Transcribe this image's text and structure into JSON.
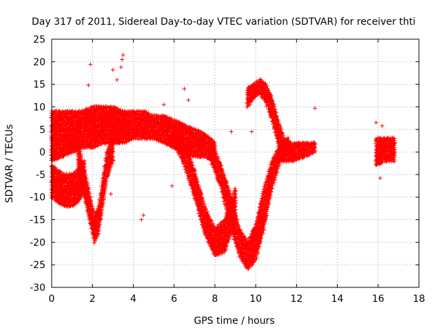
{
  "chart_data": {
    "type": "scatter",
    "title": "Day 317 of 2011, Sidereal Day-to-day VTEC variation (SDTVAR) for receiver thti",
    "xlabel": "GPS time / hours",
    "ylabel": "SDTVAR / TECUs",
    "xlim": [
      0,
      18
    ],
    "ylim": [
      -30,
      25
    ],
    "x_ticks": [
      0,
      2,
      4,
      6,
      8,
      10,
      12,
      14,
      16,
      18
    ],
    "y_ticks": [
      -30,
      -25,
      -20,
      -15,
      -10,
      -5,
      0,
      5,
      10,
      15,
      20,
      25
    ],
    "grid": true,
    "marker": "+",
    "color": "#ff0000",
    "bands": [
      {
        "name": "central-band",
        "x": [
          0.0,
          0.5,
          1.0,
          1.5,
          2.0,
          2.5,
          3.0,
          3.5,
          4.0,
          4.5,
          5.0,
          5.5,
          6.0,
          6.5,
          7.0,
          7.5,
          8.0
        ],
        "lo": [
          -2,
          -1,
          0,
          1,
          1,
          2,
          2,
          2,
          3,
          3,
          3,
          2,
          1,
          0,
          -1,
          -1,
          -2
        ],
        "hi": [
          9,
          9,
          9,
          9,
          10,
          10,
          10,
          9,
          9,
          9,
          8,
          8,
          7,
          6,
          5,
          4,
          2
        ]
      },
      {
        "name": "early-lower-band",
        "x": [
          0.0,
          0.3,
          0.6,
          1.0,
          1.3,
          1.6
        ],
        "lo": [
          -10,
          -11,
          -12,
          -12,
          -11,
          -9
        ],
        "hi": [
          -3,
          -4,
          -5,
          -5,
          -4,
          -2
        ]
      },
      {
        "name": "dip-near-2h",
        "x": [
          1.3,
          1.6,
          1.9,
          2.1,
          2.3,
          2.5,
          2.7,
          3.0
        ],
        "lo": [
          -4,
          -10,
          -16,
          -20,
          -18,
          -12,
          -6,
          -2
        ],
        "hi": [
          2,
          -4,
          -10,
          -14,
          -12,
          -6,
          0,
          3
        ]
      },
      {
        "name": "trough-8h",
        "x": [
          6.0,
          6.5,
          7.0,
          7.5,
          8.0,
          8.5,
          9.0
        ],
        "lo": [
          2,
          -3,
          -10,
          -18,
          -23,
          -22,
          -15
        ],
        "hi": [
          5,
          2,
          -4,
          -12,
          -17,
          -15,
          -8
        ]
      },
      {
        "name": "trough-9-5h",
        "x": [
          7.8,
          8.3,
          8.8,
          9.2,
          9.6,
          10.0,
          10.4,
          10.8,
          11.2,
          11.6
        ],
        "lo": [
          -2,
          -8,
          -17,
          -23,
          -26,
          -24,
          -17,
          -8,
          -2,
          0
        ],
        "hi": [
          2,
          -3,
          -10,
          -17,
          -20,
          -16,
          -8,
          -2,
          2,
          3
        ]
      },
      {
        "name": "rise-after-10h",
        "x": [
          9.6,
          9.9,
          10.2,
          10.5,
          10.8,
          11.1,
          11.4
        ],
        "lo": [
          10,
          12,
          13,
          11,
          7,
          2,
          -1
        ],
        "hi": [
          14,
          15,
          16,
          15,
          12,
          7,
          3
        ]
      },
      {
        "name": "tail-11-13h",
        "x": [
          11.2,
          11.8,
          12.4,
          12.9
        ],
        "lo": [
          -2,
          -2,
          -1,
          0
        ],
        "hi": [
          2,
          2,
          2,
          2
        ]
      },
      {
        "name": "cluster-16h",
        "x": [
          15.9,
          16.3,
          16.8
        ],
        "lo": [
          -3,
          -2,
          -2
        ],
        "hi": [
          3,
          3,
          3
        ]
      }
    ],
    "outliers": [
      {
        "x": 1.9,
        "y": 19.4
      },
      {
        "x": 3.0,
        "y": 18.2
      },
      {
        "x": 3.4,
        "y": 18.8
      },
      {
        "x": 3.5,
        "y": 21.5
      },
      {
        "x": 3.45,
        "y": 20.5
      },
      {
        "x": 3.2,
        "y": 16.0
      },
      {
        "x": 1.8,
        "y": 14.8
      },
      {
        "x": 6.5,
        "y": 14.0
      },
      {
        "x": 6.7,
        "y": 11.5
      },
      {
        "x": 5.5,
        "y": 10.5
      },
      {
        "x": 4.5,
        "y": -14.0
      },
      {
        "x": 4.4,
        "y": -15.0
      },
      {
        "x": 5.9,
        "y": -7.5
      },
      {
        "x": 8.8,
        "y": 4.5
      },
      {
        "x": 9.8,
        "y": 4.5
      },
      {
        "x": 12.9,
        "y": 9.7
      },
      {
        "x": 15.9,
        "y": 6.5
      },
      {
        "x": 16.2,
        "y": 5.8
      },
      {
        "x": 16.1,
        "y": -5.8
      },
      {
        "x": 0.4,
        "y": -11.5
      },
      {
        "x": 2.9,
        "y": -9.3
      },
      {
        "x": 0.6,
        "y": -9.0
      },
      {
        "x": 7.2,
        "y": 4.8
      }
    ]
  }
}
